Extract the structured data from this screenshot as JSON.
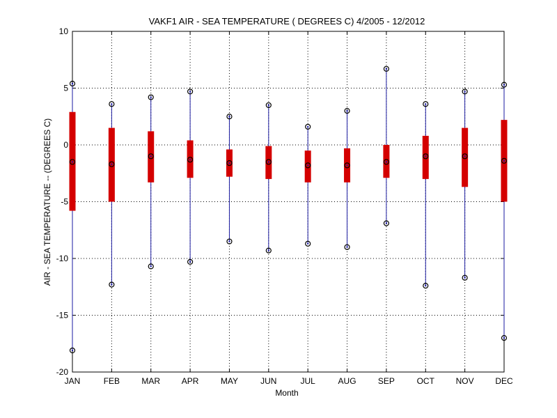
{
  "chart_data": {
    "type": "box",
    "title": "VAKF1  AIR - SEA TEMPERATURE ( DEGREES C) 4/2005 - 12/2012",
    "xlabel": "Month",
    "ylabel": "AIR - SEA TEMPERATURE -- (DEGREES C)",
    "ylim": [
      -20,
      10
    ],
    "yticks": [
      -20,
      -15,
      -10,
      -5,
      0,
      5,
      10
    ],
    "categories": [
      "JAN",
      "FEB",
      "MAR",
      "APR",
      "MAY",
      "JUN",
      "JUL",
      "AUG",
      "SEP",
      "OCT",
      "NOV",
      "DEC"
    ],
    "min": [
      -18.1,
      -12.3,
      -10.7,
      -10.3,
      -8.5,
      -9.3,
      -8.7,
      -9.0,
      -6.9,
      -12.4,
      -11.7,
      -17.0
    ],
    "q1": [
      -5.8,
      -5.0,
      -3.3,
      -2.9,
      -2.8,
      -3.0,
      -3.3,
      -3.3,
      -2.9,
      -3.0,
      -3.7,
      -5.0
    ],
    "median": [
      -1.5,
      -1.7,
      -1.0,
      -1.3,
      -1.6,
      -1.5,
      -1.8,
      -1.8,
      -1.5,
      -1.0,
      -1.0,
      -1.4
    ],
    "q3": [
      2.9,
      1.5,
      1.2,
      0.4,
      -0.4,
      -0.1,
      -0.5,
      -0.3,
      0.0,
      0.8,
      1.5,
      2.2
    ],
    "max": [
      5.4,
      3.6,
      4.2,
      4.7,
      2.5,
      3.5,
      1.6,
      3.0,
      6.7,
      3.6,
      4.7,
      5.3
    ],
    "grid": true,
    "colors": {
      "whisker": "#1a1aa0",
      "box": "#d40000",
      "marker": "#000000",
      "grid": "#000000"
    }
  }
}
